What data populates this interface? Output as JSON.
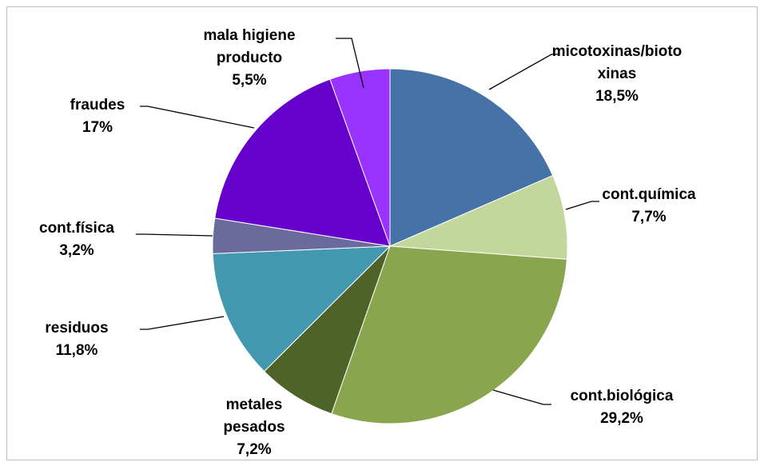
{
  "chart_data": {
    "type": "pie",
    "categories": [
      "micotoxinas/biotoxinas",
      "cont.química",
      "cont.biológica",
      "metales pesados",
      "residuos",
      "cont.física",
      "fraudes",
      "mala higiene producto"
    ],
    "values": [
      18.5,
      7.7,
      29.2,
      7.2,
      11.8,
      3.2,
      17,
      5.5
    ],
    "value_labels": [
      "18,5%",
      "7,7%",
      "29,2%",
      "7,2%",
      "11,8%",
      "3,2%",
      "17%",
      "5,5%"
    ],
    "colors": [
      "#4572A7",
      "#C3D69B",
      "#89A54E",
      "#4F6228",
      "#4198AF",
      "#6A6A9C",
      "#6600CC",
      "#9933FF"
    ]
  }
}
